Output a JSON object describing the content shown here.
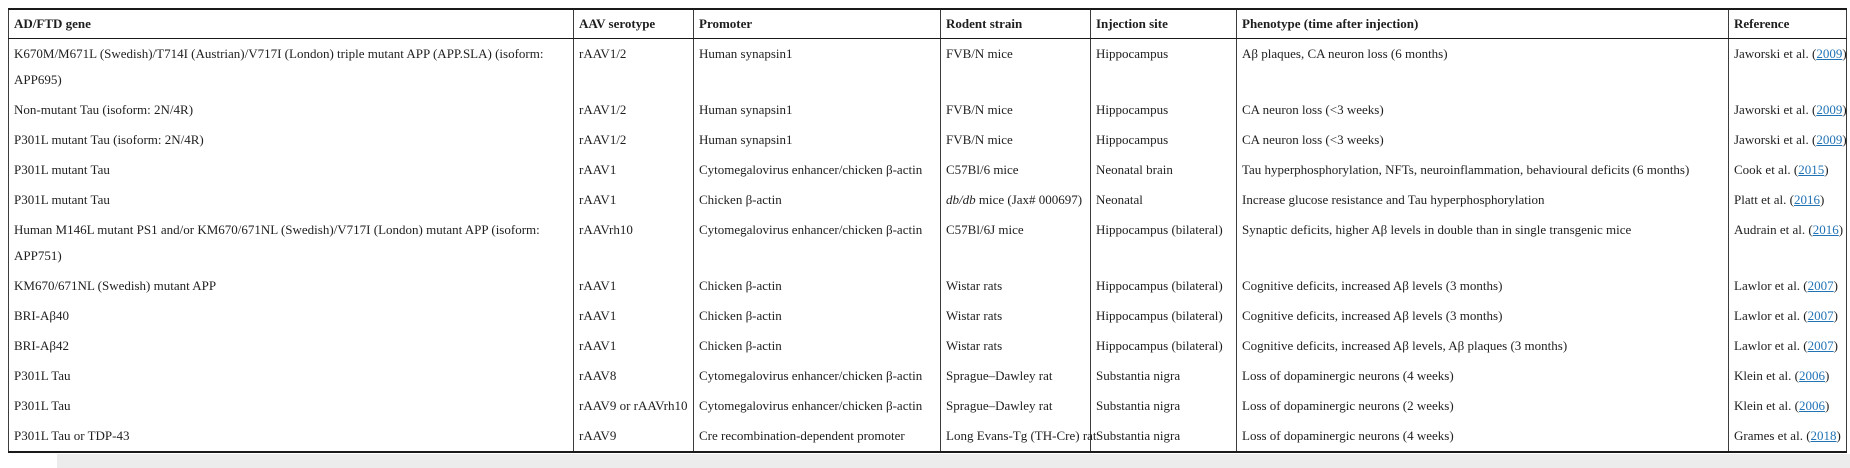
{
  "colors": {
    "link": "#2273b5",
    "text": "#1e1e1e",
    "border": "#3c3c3c",
    "border_strong": "#1a1a1a",
    "scrollbar_track": "#ececec",
    "background": "#ffffff"
  },
  "table": {
    "columns": [
      "AD/FTD gene",
      "AAV serotype",
      "Promoter",
      "Rodent strain",
      "Injection site",
      "Phenotype (time after injection)",
      "Reference"
    ],
    "rows": [
      {
        "gene": "K670M/M671L (Swedish)/T714I (Austrian)/V717I (London) triple mutant APP (APP.SLA) (isoform: APP695)",
        "serotype": "rAAV1/2",
        "promoter": "Human synapsin1",
        "strain": "FVB/N mice",
        "injection": "Hippocampus",
        "phenotype": "Aβ plaques, CA neuron loss (6 months)",
        "reference": {
          "authors": "Jaworski et al.",
          "year": "2009"
        }
      },
      {
        "gene": "Non-mutant Tau (isoform: 2N/4R)",
        "serotype": "rAAV1/2",
        "promoter": "Human synapsin1",
        "strain": "FVB/N mice",
        "injection": "Hippocampus",
        "phenotype": "CA neuron loss (<3 weeks)",
        "reference": {
          "authors": "Jaworski et al.",
          "year": "2009"
        }
      },
      {
        "gene": "P301L mutant Tau (isoform: 2N/4R)",
        "serotype": "rAAV1/2",
        "promoter": "Human synapsin1",
        "strain": "FVB/N mice",
        "injection": "Hippocampus",
        "phenotype": "CA neuron loss (<3 weeks)",
        "reference": {
          "authors": "Jaworski et al.",
          "year": "2009"
        }
      },
      {
        "gene": "P301L mutant Tau",
        "serotype": "rAAV1",
        "promoter": "Cytomegalovirus enhancer/chicken β-actin",
        "strain": "C57Bl/6 mice",
        "injection": "Neonatal brain",
        "phenotype": "Tau hyperphosphorylation, NFTs, neuroinflammation, behavioural deficits (6 months)",
        "reference": {
          "authors": "Cook et al.",
          "year": "2015"
        }
      },
      {
        "gene": "P301L mutant Tau",
        "serotype": "rAAV1",
        "promoter": "Chicken β-actin",
        "strain": [
          [
            "db/db",
            true
          ],
          [
            " mice (Jax# 000697)",
            false
          ]
        ],
        "injection": "Neonatal",
        "phenotype": "Increase glucose resistance and Tau hyperphosphorylation",
        "reference": {
          "authors": "Platt et al.",
          "year": "2016"
        }
      },
      {
        "gene": "Human M146L mutant PS1 and/or KM670/671NL (Swedish)/V717I (London) mutant APP (isoform: APP751)",
        "serotype": "rAAVrh10",
        "promoter": "Cytomegalovirus enhancer/chicken β-actin",
        "strain": "C57Bl/6J mice",
        "injection": "Hippocampus (bilateral)",
        "phenotype": "Synaptic deficits, higher Aβ levels in double than in single transgenic mice",
        "reference": {
          "authors": "Audrain et al.",
          "year": "2016"
        }
      },
      {
        "gene": "KM670/671NL (Swedish) mutant APP",
        "serotype": "rAAV1",
        "promoter": "Chicken β-actin",
        "strain": "Wistar rats",
        "injection": "Hippocampus (bilateral)",
        "phenotype": "Cognitive deficits, increased Aβ levels (3 months)",
        "reference": {
          "authors": "Lawlor et al.",
          "year": "2007"
        }
      },
      {
        "gene": "BRI-Aβ40",
        "serotype": "rAAV1",
        "promoter": "Chicken β-actin",
        "strain": "Wistar rats",
        "injection": "Hippocampus (bilateral)",
        "phenotype": "Cognitive deficits, increased Aβ levels (3 months)",
        "reference": {
          "authors": "Lawlor et al.",
          "year": "2007"
        }
      },
      {
        "gene": "BRI-Aβ42",
        "serotype": "rAAV1",
        "promoter": "Chicken β-actin",
        "strain": "Wistar rats",
        "injection": "Hippocampus (bilateral)",
        "phenotype": "Cognitive deficits, increased Aβ levels, Aβ plaques (3 months)",
        "reference": {
          "authors": "Lawlor et al.",
          "year": "2007"
        }
      },
      {
        "gene": "P301L Tau",
        "serotype": "rAAV8",
        "promoter": "Cytomegalovirus enhancer/chicken β-actin",
        "strain": "Sprague–Dawley rat",
        "injection": "Substantia nigra",
        "phenotype": "Loss of dopaminergic neurons (4 weeks)",
        "reference": {
          "authors": "Klein et al.",
          "year": "2006"
        }
      },
      {
        "gene": "P301L Tau",
        "serotype": "rAAV9 or rAAVrh10",
        "promoter": "Cytomegalovirus enhancer/chicken β-actin",
        "strain": "Sprague–Dawley rat",
        "injection": "Substantia nigra",
        "phenotype": "Loss of dopaminergic neurons (2 weeks)",
        "reference": {
          "authors": "Klein et al.",
          "year": "2006"
        }
      },
      {
        "gene": "P301L Tau or TDP-43",
        "serotype": "rAAV9",
        "promoter": "Cre recombination-dependent promoter",
        "strain": "Long Evans-Tg (TH-Cre) rat",
        "injection": "Substantia nigra",
        "phenotype": "Loss of dopaminergic neurons (4 weeks)",
        "reference": {
          "authors": "Grames et al.",
          "year": "2018"
        }
      }
    ]
  }
}
